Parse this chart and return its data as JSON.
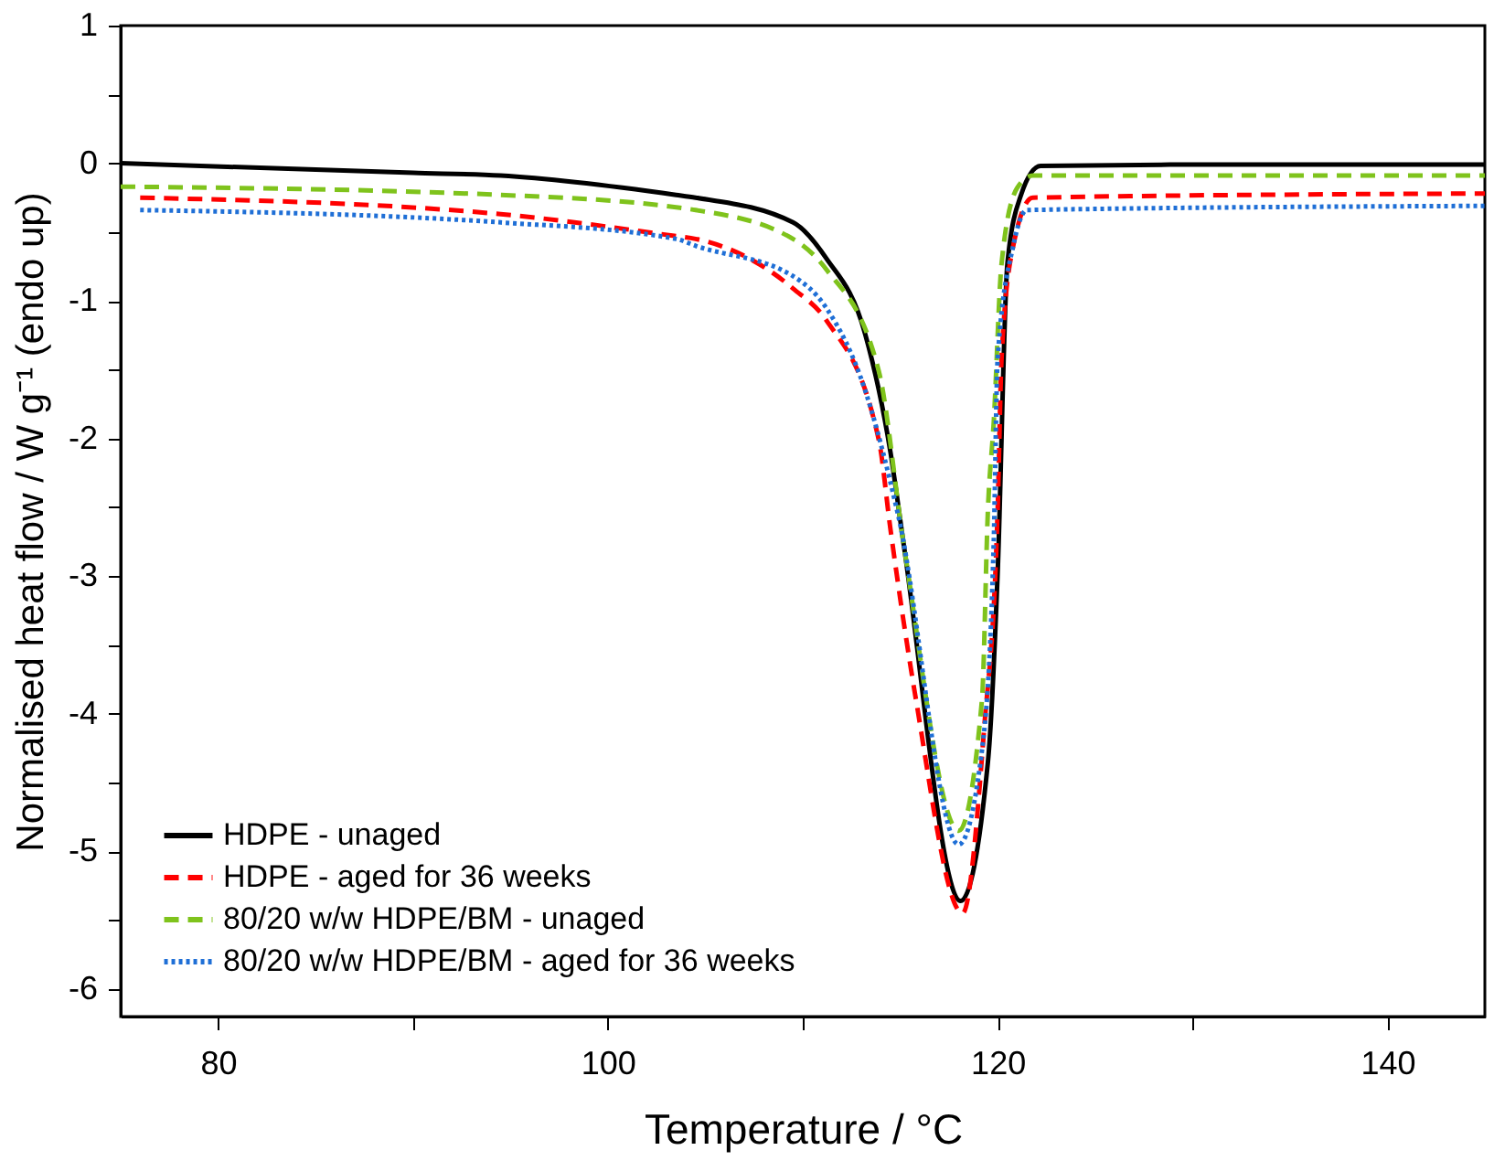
{
  "chart_data": {
    "type": "line",
    "xlabel": "Temperature / °C",
    "ylabel": "Normalised heat flow / W g⁻¹ (endo up)",
    "xlim": [
      75,
      145
    ],
    "ylim": [
      -6.2,
      1
    ],
    "xticks": [
      80,
      {
        "value": 90,
        "label": null
      },
      100,
      {
        "value": 110,
        "label": null
      },
      120,
      {
        "value": 130,
        "label": null
      },
      140
    ],
    "yticks": [
      -6,
      {
        "value": -5.5,
        "label": null
      },
      -5,
      {
        "value": -4.5,
        "label": null
      },
      -4,
      {
        "value": -3.5,
        "label": null
      },
      -3,
      {
        "value": -2.5,
        "label": null
      },
      -2,
      {
        "value": -1.5,
        "label": null
      },
      -1,
      {
        "value": -0.5,
        "label": null
      },
      0,
      {
        "value": 0.5,
        "label": null
      },
      1
    ],
    "grid": false,
    "legend": "bottom left",
    "marker": "none",
    "series": [
      {
        "name": "HDPE - unaged",
        "color": "#000000",
        "line_style": "solid",
        "x": [
          75,
          90,
          94.5,
          103.5,
          104.5,
          109.5,
          111.2,
          113.2,
          114.5,
          115.2,
          118.1,
          119.5,
          120,
          120.5,
          121.2,
          122.2,
          130,
          145
        ],
        "values": [
          0,
          -0.07,
          -0.09,
          -0.23,
          -0.25,
          -0.43,
          -0.69,
          -1.24,
          -2.1,
          -2.79,
          -5.36,
          -4.35,
          -2.98,
          -0.73,
          -0.23,
          -0.02,
          -0.01,
          -0.01
        ]
      },
      {
        "name": "HDPE - aged for 36 weeks",
        "color": "#ff0000",
        "line_style": "dashed",
        "x": [
          76,
          94.5,
          103.5,
          104.5,
          109.5,
          111.2,
          113.9,
          114.5,
          115.8,
          118.2,
          119.3,
          120,
          120.2,
          120.8,
          121.8,
          145
        ],
        "values": [
          -0.25,
          -0.37,
          -0.53,
          -0.55,
          -0.91,
          -1.14,
          -2.01,
          -2.66,
          -3.89,
          -5.45,
          -4.12,
          -2.52,
          -1.42,
          -0.6,
          -0.25,
          -0.22
        ]
      },
      {
        "name": "80/20 w/w HDPE/BM - unaged",
        "color": "#7fc31c",
        "line_style": "dashed",
        "x": [
          75,
          94.5,
          103.5,
          104.5,
          109.5,
          111.2,
          113.9,
          115.2,
          118,
          119.2,
          119.5,
          119.8,
          120.2,
          121,
          121.8,
          145
        ],
        "values": [
          -0.17,
          -0.23,
          -0.32,
          -0.34,
          -0.55,
          -0.77,
          -1.51,
          -2.79,
          -4.85,
          -3.89,
          -2.52,
          -1.88,
          -0.73,
          -0.18,
          -0.09,
          -0.09
        ]
      },
      {
        "name": "80/20 w/w HDPE/BM - aged for 36 weeks",
        "color": "#1f6fd6",
        "line_style": "dotted",
        "x": [
          76,
          94.5,
          103.5,
          104.5,
          109.5,
          111.2,
          113.2,
          114.9,
          118,
          119.2,
          119.8,
          120,
          120.8,
          121.5,
          145
        ],
        "values": [
          -0.34,
          -0.43,
          -0.55,
          -0.6,
          -0.82,
          -1.05,
          -1.65,
          -2.56,
          -4.95,
          -4.26,
          -2.75,
          -1.42,
          -0.6,
          -0.34,
          -0.31
        ]
      }
    ]
  }
}
